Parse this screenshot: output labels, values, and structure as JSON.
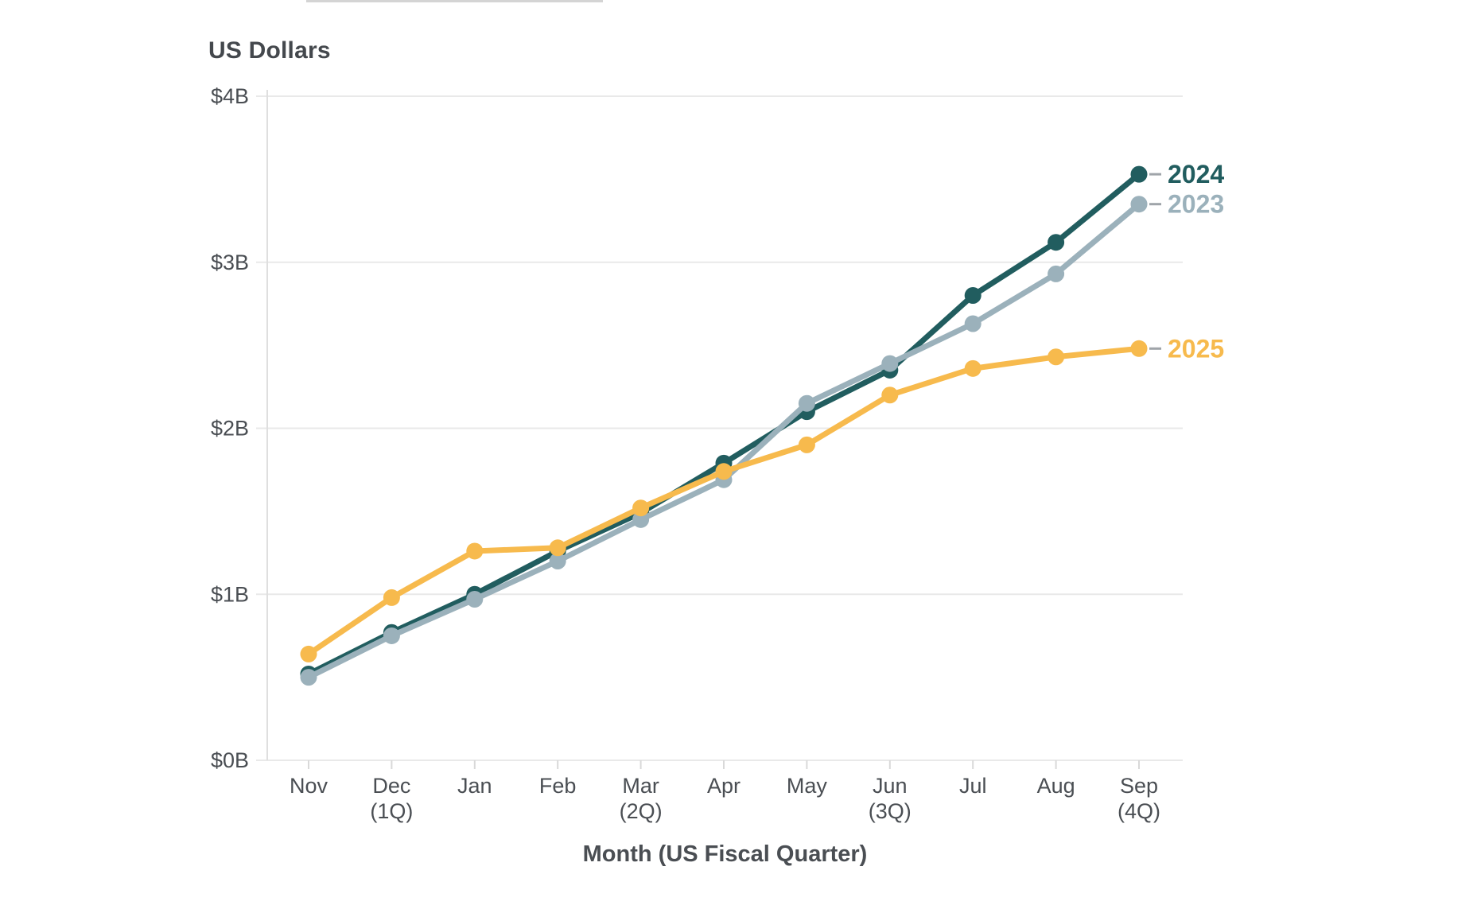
{
  "chart_data": {
    "type": "line",
    "y_axis_title": "US Dollars",
    "xlabel": "Month (US Fiscal Quarter)",
    "categories": [
      "Nov",
      "Dec",
      "Jan",
      "Feb",
      "Mar",
      "Apr",
      "May",
      "Jun",
      "Jul",
      "Aug",
      "Sep"
    ],
    "category_sublabels": [
      "",
      "(1Q)",
      "",
      "",
      "(2Q)",
      "",
      "",
      "(3Q)",
      "",
      "",
      "(4Q)"
    ],
    "y_tick_labels": [
      "$0B",
      "$1B",
      "$2B",
      "$3B",
      "$4B"
    ],
    "ylim": [
      0,
      4
    ],
    "unit": "billions of US dollars",
    "grid": "horizontal",
    "legend_position": "end-of-line-labels",
    "series": [
      {
        "name": "2024",
        "color": "#215d5f",
        "values": [
          0.52,
          0.77,
          1.0,
          1.26,
          1.49,
          1.79,
          2.1,
          2.35,
          2.8,
          3.12,
          3.53
        ]
      },
      {
        "name": "2023",
        "color": "#9bb1bb",
        "values": [
          0.5,
          0.75,
          0.97,
          1.2,
          1.45,
          1.69,
          2.15,
          2.39,
          2.63,
          2.93,
          3.35
        ]
      },
      {
        "name": "2025",
        "color": "#f7ba4d",
        "values": [
          0.64,
          0.98,
          1.26,
          1.28,
          1.52,
          1.74,
          1.9,
          2.2,
          2.36,
          2.43,
          2.48
        ]
      }
    ],
    "colors": {
      "grid": "#e9e9e9",
      "axis_line": "#dfdfdf",
      "tick": "#d9d9d9",
      "tick_text": "#4a4e53",
      "label_connector": "#9fa4a9"
    }
  }
}
